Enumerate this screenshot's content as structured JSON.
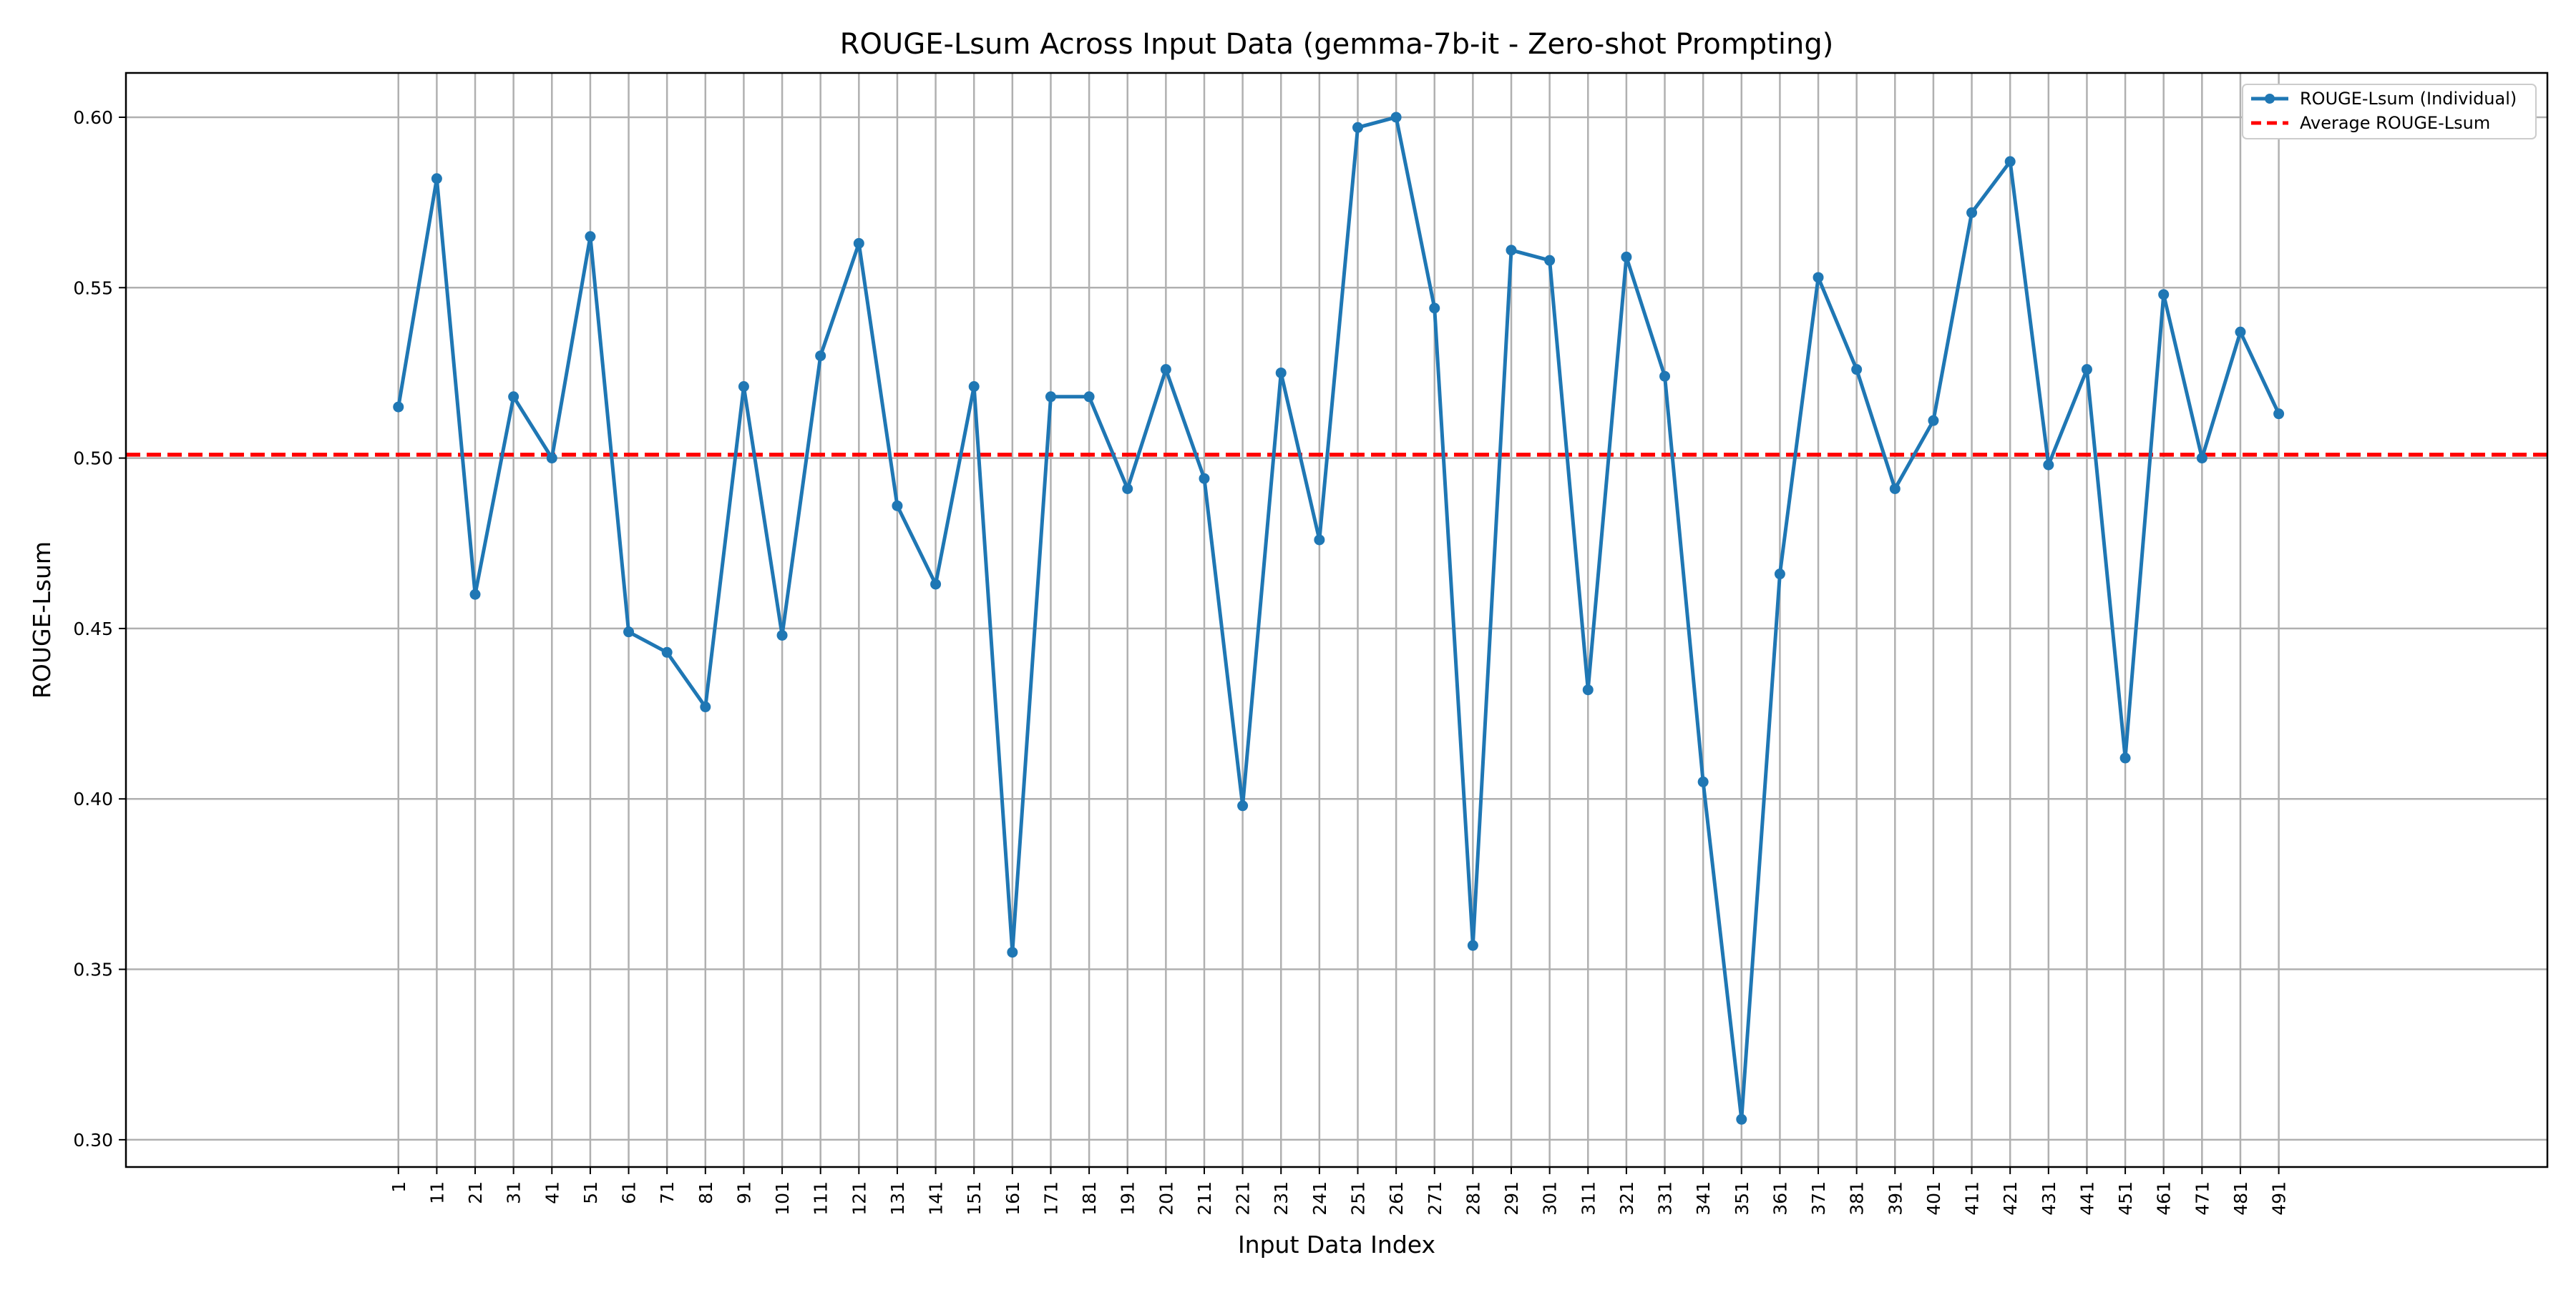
{
  "chart_data": {
    "type": "line",
    "title": "ROUGE-Lsum Across Input Data (gemma-7b-it - Zero-shot Prompting)",
    "xlabel": "Input Data Index",
    "ylabel": "ROUGE-Lsum",
    "ylim": [
      0.292,
      0.613
    ],
    "xlim": [
      -70,
      561
    ],
    "grid": true,
    "legend_position": "top-right",
    "yticks": [
      0.3,
      0.35,
      0.4,
      0.45,
      0.5,
      0.55,
      0.6
    ],
    "ytick_labels": [
      "0.30",
      "0.35",
      "0.40",
      "0.45",
      "0.50",
      "0.55",
      "0.60"
    ],
    "x": [
      1,
      11,
      21,
      31,
      41,
      51,
      61,
      71,
      81,
      91,
      101,
      111,
      121,
      131,
      141,
      151,
      161,
      171,
      181,
      191,
      201,
      211,
      221,
      231,
      241,
      251,
      261,
      271,
      281,
      291,
      301,
      311,
      321,
      331,
      341,
      351,
      361,
      371,
      381,
      391,
      401,
      411,
      421,
      431,
      441,
      451,
      461,
      471,
      481,
      491
    ],
    "xtick_labels": [
      "1",
      "11",
      "21",
      "31",
      "41",
      "51",
      "61",
      "71",
      "81",
      "91",
      "101",
      "111",
      "121",
      "131",
      "141",
      "151",
      "161",
      "171",
      "181",
      "191",
      "201",
      "211",
      "221",
      "231",
      "241",
      "251",
      "261",
      "271",
      "281",
      "291",
      "301",
      "311",
      "321",
      "331",
      "341",
      "351",
      "361",
      "371",
      "381",
      "391",
      "401",
      "411",
      "421",
      "431",
      "441",
      "451",
      "461",
      "471",
      "481",
      "491"
    ],
    "series": [
      {
        "name": "ROUGE-Lsum (Individual)",
        "color": "#1f77b4",
        "style": "solid-with-markers",
        "values": [
          0.515,
          0.582,
          0.46,
          0.518,
          0.5,
          0.565,
          0.449,
          0.443,
          0.427,
          0.521,
          0.448,
          0.53,
          0.563,
          0.486,
          0.463,
          0.521,
          0.355,
          0.518,
          0.518,
          0.491,
          0.526,
          0.494,
          0.398,
          0.525,
          0.476,
          0.597,
          0.6,
          0.544,
          0.357,
          0.561,
          0.558,
          0.432,
          0.559,
          0.524,
          0.405,
          0.306,
          0.466,
          0.553,
          0.526,
          0.491,
          0.511,
          0.572,
          0.587,
          0.498,
          0.526,
          0.412,
          0.548,
          0.5,
          0.537,
          0.513
        ]
      },
      {
        "name": "Average ROUGE-Lsum",
        "color": "#ff0000",
        "style": "dashed",
        "value": 0.501
      }
    ]
  }
}
